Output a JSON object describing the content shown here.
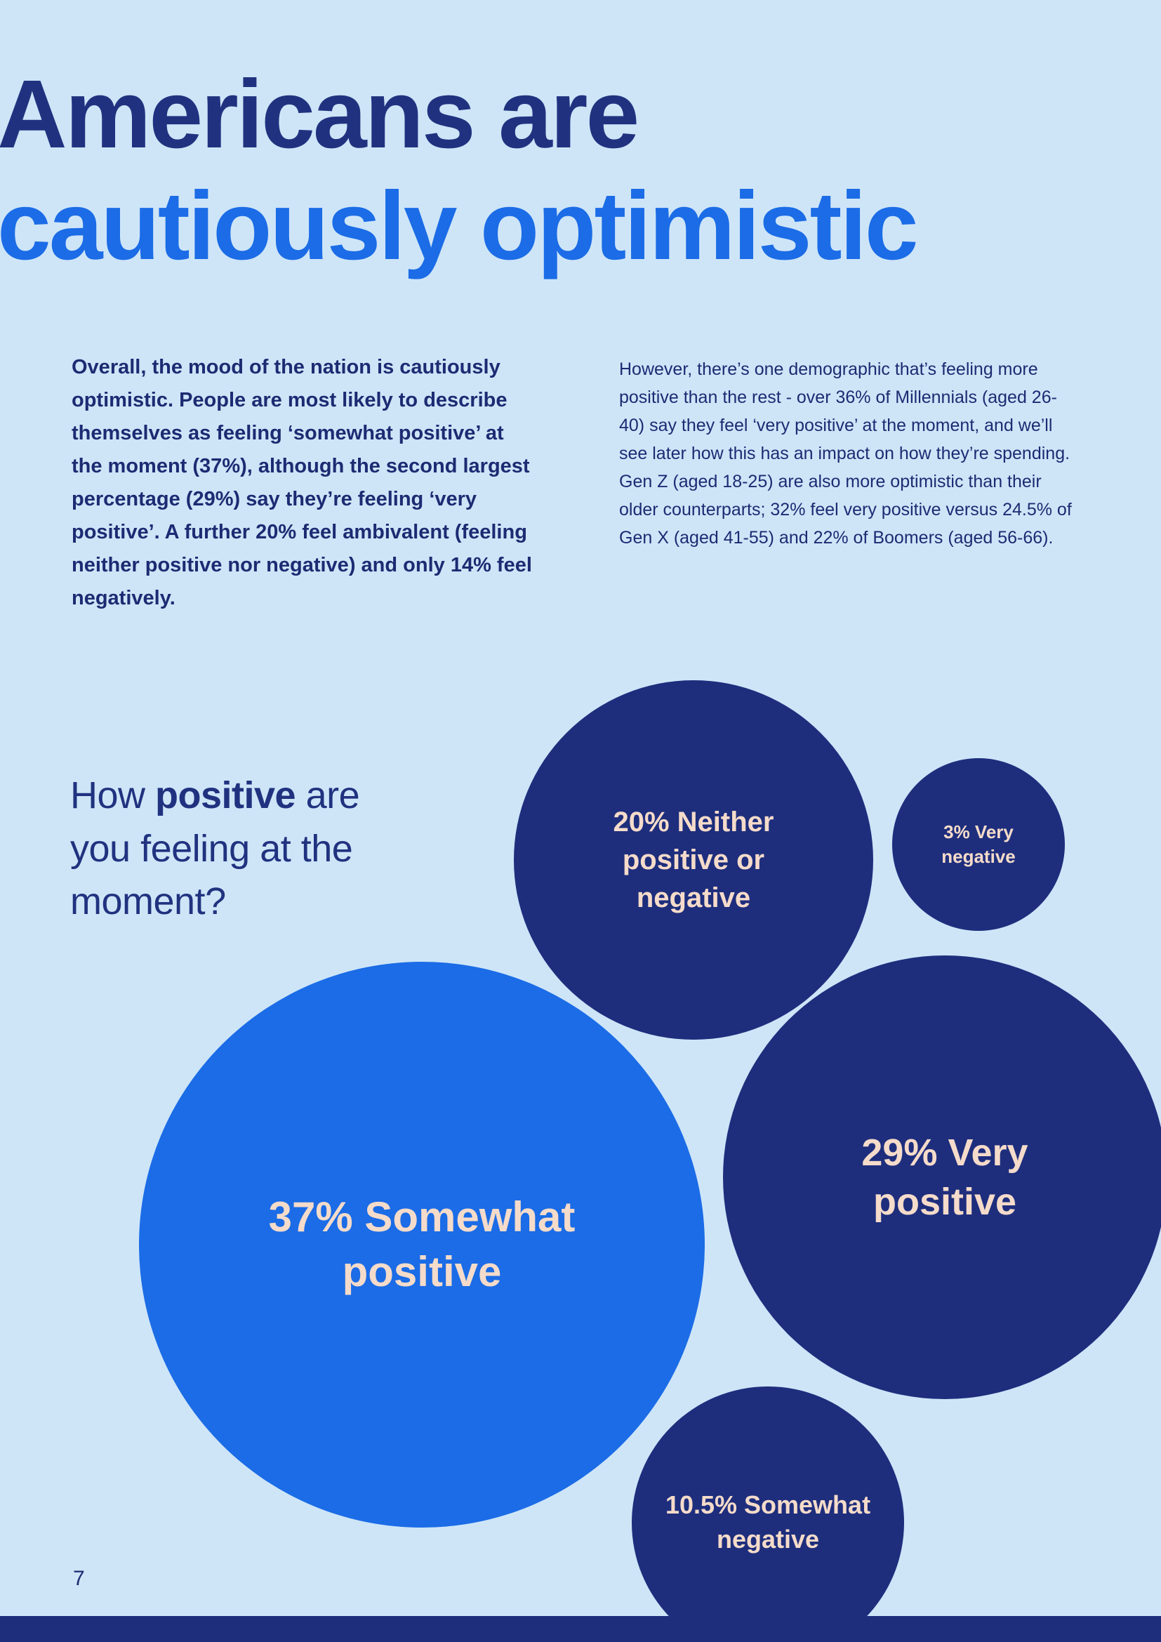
{
  "colors": {
    "background": "#cee5f8",
    "navy": "#1e2e7d",
    "bright_blue": "#1b6ce6",
    "bubble_text": "#f5dbca",
    "heading_navy": "#20327f",
    "body_navy": "#1c2b72"
  },
  "header": {
    "title_line1": "Americans are",
    "title_line2": "cautiously optimistic"
  },
  "intro": {
    "left_paragraph": "Overall, the mood of the nation is cautiously optimistic. People are most likely to describe themselves as feeling ‘somewhat positive’ at the moment (37%), although the second largest percentage (29%) say they’re feeling ‘very positive’. A further 20% feel ambivalent (feeling neither positive nor negative) and only 14% feel negatively.",
    "right_paragraph": "However, there’s one demographic that’s feeling more positive than the rest - over 36% of Millennials (aged 26-40) say they feel ‘very positive’ at the moment, and we’ll see later how this has an impact on how they’re spending. Gen Z (aged 18-25) are also more optimistic than their older counterparts; 32% feel very positive versus 24.5% of Gen X (aged 41-55) and 22% of Boomers (aged 56-66)."
  },
  "question": {
    "line1_pre": "How ",
    "line1_bold": "positive",
    "line1_post": " are",
    "line2": "you feeling at the",
    "line3": "moment?"
  },
  "chart_data": {
    "type": "bubble",
    "title": "How positive are you feeling at the moment?",
    "unit": "percent",
    "bubbles": [
      {
        "category": "Somewhat positive",
        "value": 37,
        "label": "37% Somewhat positive",
        "color": "#1b6ce6"
      },
      {
        "category": "Very positive",
        "value": 29,
        "label": "29% Very positive",
        "color": "#1e2e7d"
      },
      {
        "category": "Neither positive or negative",
        "value": 20,
        "label": "20% Neither positive or negative",
        "color": "#1e2e7d"
      },
      {
        "category": "Somewhat negative",
        "value": 10.5,
        "label": "10.5% Somewhat negative",
        "color": "#1e2e7d"
      },
      {
        "category": "Very negative",
        "value": 3,
        "label": "3% Very negative",
        "color": "#1e2e7d"
      }
    ]
  },
  "footer": {
    "page_number": "7"
  }
}
